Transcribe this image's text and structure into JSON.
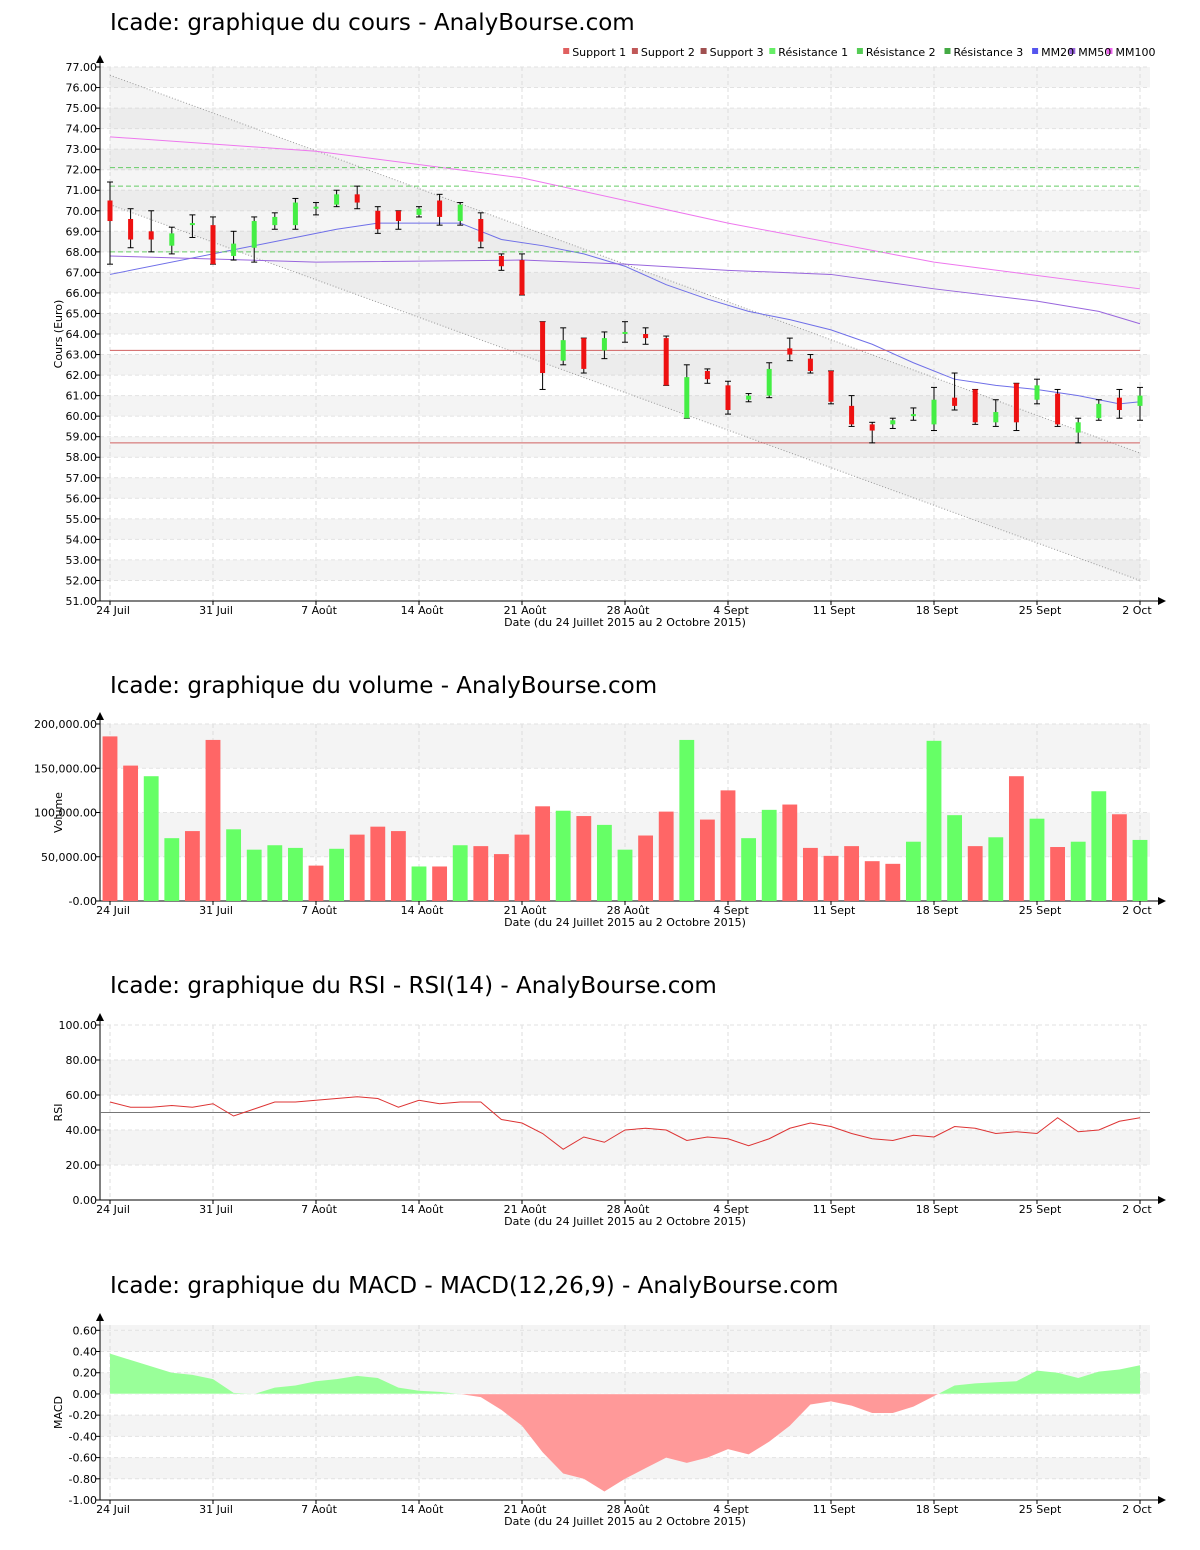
{
  "x_ticks": [
    "24 Juil",
    "31 Juil",
    "7 Août",
    "14 Août",
    "21 Août",
    "28 Août",
    "4 Sept",
    "11 Sept",
    "18 Sept",
    "25 Sept",
    "2 Oct"
  ],
  "x_title": "Date (du 24 Juillet 2015 au 2 Octobre 2015)",
  "colors": {
    "up": "#44ee44",
    "down": "#ee1111",
    "vol_up": "#66ff66",
    "vol_down": "#ff6666",
    "mm20": "#6f6fe8",
    "mm50": "#9966dd",
    "mm100": "#ee77ee",
    "support": "#d06060",
    "resistance": "#66cc66",
    "macd_pos": "#99ff99",
    "macd_neg": "#ff9999"
  },
  "price": {
    "title": "Icade: graphique du cours - AnalyBourse.com",
    "ylabel": "Cours (Euro)",
    "legend": [
      {
        "label": "Support 1",
        "color": "#e06060"
      },
      {
        "label": "Support 2",
        "color": "#c05858"
      },
      {
        "label": "Support 3",
        "color": "#a05050"
      },
      {
        "label": "Résistance 1",
        "color": "#66ee66"
      },
      {
        "label": "Résistance 2",
        "color": "#55cc55"
      },
      {
        "label": "Résistance 3",
        "color": "#44aa44"
      },
      {
        "label": "MM20",
        "color": "#5555ee"
      },
      {
        "label": "MM50",
        "color": "#9966dd"
      },
      {
        "label": "MM100",
        "color": "#ee66ee"
      }
    ]
  },
  "volume": {
    "title": "Icade: graphique du volume - AnalyBourse.com",
    "ylabel": "Volume"
  },
  "rsi": {
    "title": "Icade: graphique du RSI - RSI(14) - AnalyBourse.com",
    "ylabel": "RSI"
  },
  "macd": {
    "title": "Icade: graphique du MACD - MACD(12,26,9) - AnalyBourse.com",
    "ylabel": "MACD"
  },
  "chart_data": [
    {
      "type": "candlestick",
      "title": "Icade: graphique du cours - AnalyBourse.com",
      "xlabel": "Date (du 24 Juillet 2015 au 2 Octobre 2015)",
      "ylabel": "Cours (Euro)",
      "ylim": [
        51,
        77
      ],
      "ytick_step": 1,
      "x_count": 51,
      "candles": [
        [
          70.5,
          69.5,
          71.4,
          67.4
        ],
        [
          69.6,
          68.6,
          70.1,
          68.2
        ],
        [
          69.0,
          68.6,
          70.0,
          68.0
        ],
        [
          68.3,
          68.9,
          69.2,
          67.9
        ],
        [
          69.4,
          69.4,
          69.8,
          68.7
        ],
        [
          69.3,
          67.4,
          69.7,
          67.4
        ],
        [
          67.8,
          68.4,
          69.0,
          67.6
        ],
        [
          68.2,
          69.5,
          69.7,
          67.5
        ],
        [
          69.3,
          69.7,
          69.9,
          69.1
        ],
        [
          69.3,
          70.4,
          70.6,
          69.1
        ],
        [
          70.2,
          70.2,
          70.4,
          69.8
        ],
        [
          70.3,
          70.8,
          71.0,
          70.2
        ],
        [
          70.8,
          70.4,
          71.2,
          70.1
        ],
        [
          70.0,
          69.1,
          70.2,
          68.9
        ],
        [
          70.0,
          69.5,
          70.0,
          69.1
        ],
        [
          69.8,
          70.1,
          70.2,
          69.7
        ],
        [
          70.5,
          69.7,
          70.8,
          69.3
        ],
        [
          69.5,
          70.3,
          70.4,
          69.3
        ],
        [
          69.6,
          68.5,
          69.9,
          68.2
        ],
        [
          67.8,
          67.3,
          67.9,
          67.1
        ],
        [
          67.6,
          65.9,
          67.9,
          65.9
        ],
        [
          64.6,
          62.1,
          64.6,
          61.3
        ],
        [
          62.7,
          63.7,
          64.3,
          62.5
        ],
        [
          63.8,
          62.3,
          63.8,
          62.1
        ],
        [
          63.2,
          63.8,
          64.1,
          62.8
        ],
        [
          64.0,
          64.1,
          64.6,
          63.6
        ],
        [
          64.0,
          63.8,
          64.3,
          63.5
        ],
        [
          63.8,
          61.5,
          63.9,
          61.5
        ],
        [
          59.9,
          61.9,
          62.5,
          59.9
        ],
        [
          62.2,
          61.8,
          62.3,
          61.6
        ],
        [
          61.5,
          60.3,
          61.7,
          60.1
        ],
        [
          60.8,
          61.0,
          61.1,
          60.7
        ],
        [
          61.0,
          62.3,
          62.6,
          60.9
        ],
        [
          63.3,
          63.0,
          63.8,
          62.7
        ],
        [
          62.8,
          62.2,
          63.0,
          62.1
        ],
        [
          62.2,
          60.7,
          62.2,
          60.6
        ],
        [
          60.5,
          59.6,
          61.0,
          59.5
        ],
        [
          59.6,
          59.3,
          59.7,
          58.7
        ],
        [
          59.6,
          59.8,
          59.9,
          59.4
        ],
        [
          60.0,
          60.1,
          60.4,
          59.8
        ],
        [
          59.6,
          60.8,
          61.4,
          59.3
        ],
        [
          60.9,
          60.5,
          62.1,
          60.3
        ],
        [
          61.3,
          59.7,
          61.3,
          59.6
        ],
        [
          59.7,
          60.2,
          60.8,
          59.5
        ],
        [
          61.6,
          59.7,
          61.6,
          59.3
        ],
        [
          60.8,
          61.5,
          61.8,
          60.6
        ],
        [
          61.1,
          59.6,
          61.3,
          59.5
        ],
        [
          59.2,
          59.7,
          59.9,
          58.7
        ],
        [
          59.9,
          60.6,
          60.8,
          59.8
        ],
        [
          60.9,
          60.3,
          61.3,
          59.9
        ],
        [
          60.5,
          61.0,
          61.4,
          59.8
        ]
      ],
      "lines": {
        "MM20": [
          [
            0,
            66.9
          ],
          [
            5,
            67.9
          ],
          [
            9,
            68.7
          ],
          [
            11,
            69.1
          ],
          [
            13,
            69.4
          ],
          [
            17,
            69.4
          ],
          [
            19,
            68.6
          ],
          [
            21,
            68.3
          ],
          [
            23,
            67.9
          ],
          [
            25,
            67.3
          ],
          [
            27,
            66.4
          ],
          [
            29,
            65.7
          ],
          [
            31,
            65.1
          ],
          [
            33,
            64.7
          ],
          [
            35,
            64.2
          ],
          [
            37,
            63.5
          ],
          [
            39,
            62.6
          ],
          [
            41,
            61.8
          ],
          [
            43,
            61.5
          ],
          [
            45,
            61.3
          ],
          [
            47,
            61.0
          ],
          [
            49,
            60.6
          ],
          [
            50,
            60.7
          ]
        ],
        "MM50": [
          [
            0,
            67.8
          ],
          [
            10,
            67.5
          ],
          [
            20,
            67.6
          ],
          [
            25,
            67.4
          ],
          [
            30,
            67.1
          ],
          [
            35,
            66.9
          ],
          [
            40,
            66.2
          ],
          [
            45,
            65.6
          ],
          [
            48,
            65.1
          ],
          [
            50,
            64.5
          ]
        ],
        "MM100": [
          [
            0,
            73.6
          ],
          [
            10,
            72.9
          ],
          [
            20,
            71.6
          ],
          [
            30,
            69.4
          ],
          [
            40,
            67.5
          ],
          [
            50,
            66.2
          ]
        ],
        "Support 1": [
          [
            0,
            63.2
          ],
          [
            50,
            63.2
          ]
        ],
        "Support 2": [
          [
            0,
            58.7
          ],
          [
            50,
            58.7
          ]
        ],
        "Résistance 1": [
          [
            0,
            68.0
          ],
          [
            50,
            68.0
          ]
        ],
        "Résistance 2": [
          [
            0,
            71.2
          ],
          [
            50,
            71.2
          ]
        ],
        "Résistance 3": [
          [
            0,
            72.1
          ],
          [
            50,
            72.1
          ]
        ]
      },
      "trend_channel": [
        [
          0,
          76.6
        ],
        [
          50,
          58.2
        ],
        [
          50,
          52.0
        ],
        [
          0,
          70.3
        ]
      ]
    },
    {
      "type": "bar",
      "title": "Icade: graphique du volume - AnalyBourse.com",
      "xlabel": "Date (du 24 Juillet 2015 au 2 Octobre 2015)",
      "ylabel": "Volume",
      "ylim": [
        0,
        200000
      ],
      "ytick_step": 50000,
      "values": [
        186000,
        153000,
        141000,
        71000,
        79000,
        182000,
        81000,
        58000,
        63000,
        60000,
        40000,
        59000,
        75000,
        84000,
        79000,
        39000,
        39000,
        63000,
        62000,
        53000,
        75000,
        107000,
        102000,
        96000,
        86000,
        58000,
        74000,
        101000,
        182000,
        92000,
        125000,
        71000,
        103000,
        109000,
        60000,
        51000,
        62000,
        45000,
        42000,
        67000,
        181000,
        97000,
        62000,
        72000,
        141000,
        93000,
        61000,
        67000,
        124000,
        98000,
        69000
      ],
      "direction": [
        "d",
        "d",
        "u",
        "u",
        "d",
        "d",
        "u",
        "u",
        "u",
        "u",
        "d",
        "u",
        "d",
        "d",
        "d",
        "u",
        "d",
        "u",
        "d",
        "d",
        "d",
        "d",
        "u",
        "d",
        "u",
        "u",
        "d",
        "d",
        "u",
        "d",
        "d",
        "u",
        "u",
        "d",
        "d",
        "d",
        "d",
        "d",
        "d",
        "u",
        "u",
        "u",
        "d",
        "u",
        "d",
        "u",
        "d",
        "u",
        "u",
        "d",
        "u"
      ]
    },
    {
      "type": "line",
      "title": "Icade: graphique du RSI - RSI(14) - AnalyBourse.com",
      "xlabel": "Date (du 24 Juillet 2015 au 2 Octobre 2015)",
      "ylabel": "RSI",
      "ylim": [
        0,
        100
      ],
      "ytick_step": 20,
      "reference_line": 50,
      "values": [
        56,
        53,
        53,
        54,
        53,
        55,
        48,
        52,
        56,
        56,
        57,
        58,
        59,
        58,
        53,
        57,
        55,
        56,
        56,
        46,
        44,
        38,
        29,
        36,
        33,
        40,
        41,
        40,
        34,
        36,
        35,
        31,
        35,
        41,
        44,
        42,
        38,
        35,
        34,
        37,
        36,
        42,
        41,
        38,
        39,
        38,
        47,
        39,
        40,
        45,
        47
      ]
    },
    {
      "type": "area",
      "title": "Icade: graphique du MACD - MACD(12,26,9) - AnalyBourse.com",
      "xlabel": "Date (du 24 Juillet 2015 au 2 Octobre 2015)",
      "ylabel": "MACD",
      "ylim": [
        -1,
        0.65
      ],
      "ytick_step": 0.2,
      "values": [
        0.38,
        0.32,
        0.26,
        0.2,
        0.18,
        0.14,
        0.01,
        0.0,
        0.06,
        0.08,
        0.12,
        0.14,
        0.17,
        0.15,
        0.06,
        0.03,
        0.02,
        0.0,
        -0.03,
        -0.15,
        -0.3,
        -0.55,
        -0.75,
        -0.8,
        -0.92,
        -0.8,
        -0.7,
        -0.6,
        -0.65,
        -0.6,
        -0.52,
        -0.57,
        -0.45,
        -0.3,
        -0.1,
        -0.07,
        -0.11,
        -0.18,
        -0.18,
        -0.12,
        -0.02,
        0.08,
        0.1,
        0.11,
        0.12,
        0.22,
        0.2,
        0.15,
        0.21,
        0.23,
        0.27
      ]
    }
  ]
}
